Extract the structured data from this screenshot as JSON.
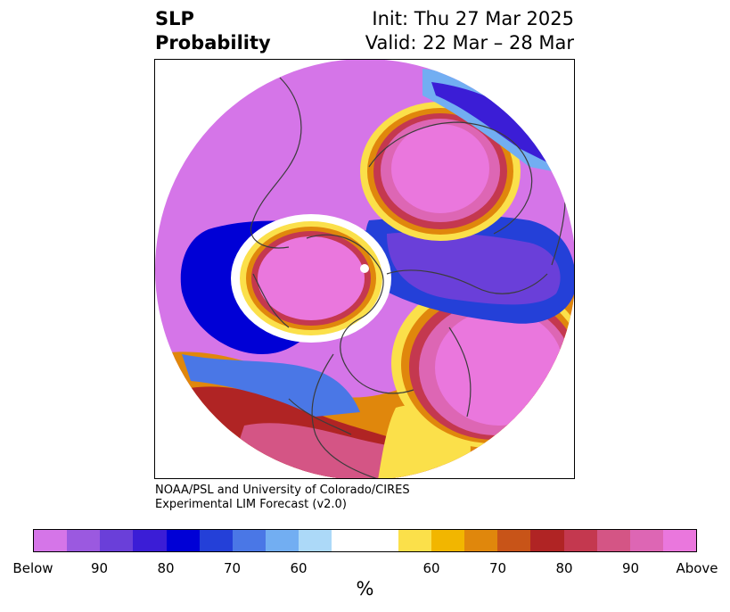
{
  "title": {
    "left_line1": "SLP",
    "left_line2": "Probability",
    "right_line1": "Init: Thu 27 Mar 2025",
    "right_line2": "Valid: 22 Mar – 28 Mar"
  },
  "credit": {
    "line1": "NOAA/PSL and University of Colorado/CIRES",
    "line2": "Experimental LIM Forecast (v2.0)"
  },
  "colorbar": {
    "colors": [
      "#d575e8",
      "#9b59e0",
      "#6a3fd9",
      "#3b1dd6",
      "#0000d6",
      "#2440d8",
      "#4a77e6",
      "#72aef2",
      "#acd9f8",
      "#ffffff",
      "#ffffff",
      "#fbe04a",
      "#f2b600",
      "#e0870c",
      "#c85418",
      "#b02424",
      "#c4384f",
      "#d45585",
      "#dd66b4",
      "#ea77dd"
    ],
    "tick_labels": [
      "Below",
      "90",
      "80",
      "70",
      "60",
      "60",
      "70",
      "80",
      "90",
      "Above"
    ],
    "unit": "%"
  },
  "map": {
    "projection": "north polar stereographic",
    "field": "SLP probability",
    "colors": {
      "below_far": "#d575e8",
      "below_strong": "#9b59e0",
      "below_mid": "#6a3fd9",
      "below_deep": "#0000d6",
      "below_light": "#72aef2",
      "near_normal": "#ffffff",
      "above_light": "#fbe04a",
      "above_mid": "#e0870c",
      "above_red": "#b02424",
      "above_rose": "#d45585",
      "above_far": "#ea77dd",
      "coast": "#3c3c3c"
    }
  }
}
